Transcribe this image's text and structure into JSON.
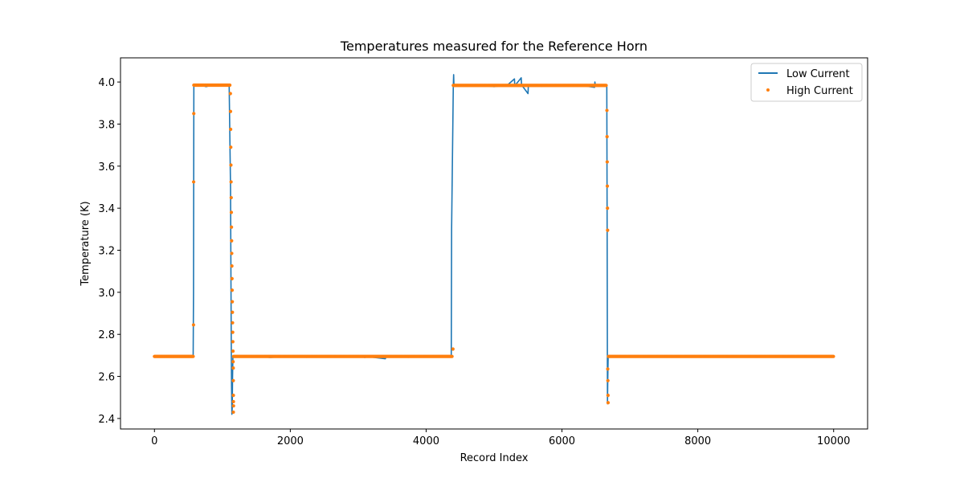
{
  "chart_data": {
    "type": "line",
    "title": "Temperatures measured for the Reference Horn",
    "xlabel": "Record Index",
    "ylabel": "Temperature (K)",
    "xlim": [
      -500,
      10500
    ],
    "ylim": [
      2.35,
      4.115
    ],
    "xticks": [
      0,
      2000,
      4000,
      6000,
      8000,
      10000
    ],
    "xtick_labels": [
      "0",
      "2000",
      "4000",
      "6000",
      "8000",
      "10000"
    ],
    "yticks": [
      2.4,
      2.6,
      2.8,
      3.0,
      3.2,
      3.4,
      3.6,
      3.8,
      4.0
    ],
    "ytick_labels": [
      "2.4",
      "2.6",
      "2.8",
      "3.0",
      "3.2",
      "3.4",
      "3.6",
      "3.8",
      "4.0"
    ],
    "grid": false,
    "legend_position": "top-right",
    "series": [
      {
        "name": "Low Current",
        "style": "line",
        "color": "#1f77b4",
        "x": [
          0,
          570,
          575,
          580,
          640,
          700,
          760,
          820,
          900,
          1000,
          1100,
          1120,
          1130,
          1135,
          1140,
          1145,
          1150,
          1155,
          1160,
          1170,
          1200,
          1300,
          1500,
          1700,
          2000,
          2500,
          3000,
          3100,
          3110,
          3400,
          3410,
          3800,
          4300,
          4370,
          4375,
          4400,
          4405,
          4410,
          4415,
          4420,
          4600,
          4800,
          5000,
          5200,
          5300,
          5305,
          5310,
          5400,
          5405,
          5410,
          5500,
          5505,
          5510,
          5700,
          5900,
          6100,
          6300,
          6480,
          6485,
          6490,
          6600,
          6660,
          6665,
          6670,
          6675,
          6680,
          6690,
          6720,
          7000,
          8000,
          9000,
          10000
        ],
        "y": [
          2.695,
          2.695,
          3.0,
          3.985,
          3.983,
          3.984,
          3.978,
          3.983,
          3.985,
          3.984,
          3.985,
          3.5,
          2.8,
          2.55,
          2.42,
          2.45,
          2.6,
          2.69,
          2.695,
          2.695,
          2.696,
          2.695,
          2.696,
          2.69,
          2.695,
          2.694,
          2.695,
          2.69,
          2.695,
          2.684,
          2.695,
          2.695,
          2.695,
          2.695,
          3.3,
          3.98,
          4.035,
          3.98,
          3.99,
          3.985,
          3.982,
          3.984,
          3.978,
          3.986,
          4.015,
          3.985,
          3.984,
          4.02,
          3.985,
          3.984,
          3.945,
          3.984,
          3.985,
          3.98,
          3.986,
          3.984,
          3.983,
          3.975,
          4.0,
          3.985,
          3.986,
          3.985,
          3.3,
          2.47,
          2.6,
          2.695,
          2.695,
          2.696,
          2.695,
          2.695,
          2.695,
          2.695
        ]
      },
      {
        "name": "High Current",
        "style": "scatter",
        "color": "#ff7f0e",
        "segments": [
          {
            "x_start": 0,
            "x_end": 570,
            "step": 10,
            "y": 2.695
          },
          {
            "x_start": 580,
            "x_end": 1115,
            "step": 10,
            "y": 3.985
          },
          {
            "x_start": 1165,
            "x_end": 4390,
            "step": 12,
            "y": 2.695
          },
          {
            "x_start": 4400,
            "x_end": 6650,
            "step": 10,
            "y": 3.984
          },
          {
            "x_start": 6685,
            "x_end": 10000,
            "step": 12,
            "y": 2.695
          }
        ],
        "extra_points": [
          {
            "x": 575,
            "y": 2.845
          },
          {
            "x": 577,
            "y": 3.525
          },
          {
            "x": 579,
            "y": 3.85
          },
          {
            "x": 1118,
            "y": 3.945
          },
          {
            "x": 1120,
            "y": 3.86
          },
          {
            "x": 1122,
            "y": 3.775
          },
          {
            "x": 1124,
            "y": 3.69
          },
          {
            "x": 1126,
            "y": 3.605
          },
          {
            "x": 1128,
            "y": 3.525
          },
          {
            "x": 1130,
            "y": 3.45
          },
          {
            "x": 1132,
            "y": 3.38
          },
          {
            "x": 1134,
            "y": 3.31
          },
          {
            "x": 1136,
            "y": 3.245
          },
          {
            "x": 1138,
            "y": 3.185
          },
          {
            "x": 1140,
            "y": 3.125
          },
          {
            "x": 1142,
            "y": 3.065
          },
          {
            "x": 1144,
            "y": 3.01
          },
          {
            "x": 1146,
            "y": 2.955
          },
          {
            "x": 1148,
            "y": 2.905
          },
          {
            "x": 1150,
            "y": 2.855
          },
          {
            "x": 1152,
            "y": 2.81
          },
          {
            "x": 1154,
            "y": 2.765
          },
          {
            "x": 1156,
            "y": 2.72
          },
          {
            "x": 1158,
            "y": 2.67
          },
          {
            "x": 1160,
            "y": 2.64
          },
          {
            "x": 1161,
            "y": 2.58
          },
          {
            "x": 1162,
            "y": 2.51
          },
          {
            "x": 1163,
            "y": 2.48
          },
          {
            "x": 1164,
            "y": 2.46
          },
          {
            "x": 1162,
            "y": 2.43
          },
          {
            "x": 4395,
            "y": 2.73
          },
          {
            "x": 6662,
            "y": 3.865
          },
          {
            "x": 6664,
            "y": 3.74
          },
          {
            "x": 6666,
            "y": 3.62
          },
          {
            "x": 6668,
            "y": 3.505
          },
          {
            "x": 6670,
            "y": 3.4
          },
          {
            "x": 6672,
            "y": 3.295
          },
          {
            "x": 6674,
            "y": 2.635
          },
          {
            "x": 6676,
            "y": 2.58
          },
          {
            "x": 6678,
            "y": 2.51
          },
          {
            "x": 6679,
            "y": 2.475
          }
        ]
      }
    ]
  }
}
